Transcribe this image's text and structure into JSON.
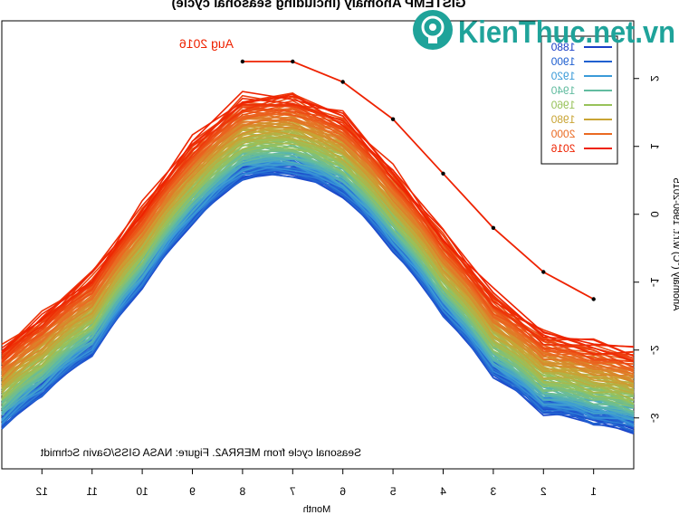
{
  "chart_data": {
    "type": "line",
    "title": "GISTEMP Anomaly (including seasonal cycle)",
    "xlabel": "Month",
    "ylabel": "Anomaly (°C) w.r.t. 1980-2015",
    "x_ticks": [
      1,
      2,
      3,
      4,
      5,
      6,
      7,
      8,
      9,
      10,
      11,
      12
    ],
    "y_ticks": [
      -3,
      -2,
      -1,
      0,
      1,
      2
    ],
    "xlim": [
      0.2,
      12.8
    ],
    "ylim": [
      -3.75,
      2.85
    ],
    "x_axis_reversed": true,
    "grid": false,
    "legend_position": "top-right",
    "annotation": "Aug 2016",
    "caption": "Seasonal cycle from MERRA2. Figure: NASA GISS/Gavin Schmidt",
    "legend": [
      {
        "label": "1880",
        "color": "#1a3fc7"
      },
      {
        "label": "1900",
        "color": "#2060d0"
      },
      {
        "label": "1920",
        "color": "#3a9ad8"
      },
      {
        "label": "1940",
        "color": "#62bca0"
      },
      {
        "label": "1960",
        "color": "#98c25a"
      },
      {
        "label": "1980",
        "color": "#c9a434"
      },
      {
        "label": "2000",
        "color": "#ea6a22"
      },
      {
        "label": "2016",
        "color": "#ee2200"
      }
    ],
    "base_cycle": [
      -2.6,
      -2.45,
      -1.9,
      -1.0,
      -0.05,
      0.75,
      1.05,
      1.0,
      0.35,
      -0.6,
      -1.6,
      -2.2
    ],
    "year_range": [
      1880,
      2015
    ],
    "warming_range": [
      -0.4,
      0.7
    ],
    "year_2016": {
      "name": "2016",
      "color": "#ee2200",
      "x": [
        1,
        2,
        3,
        4,
        5,
        6,
        7,
        8
      ],
      "values": [
        -1.25,
        -0.85,
        -0.2,
        0.6,
        1.4,
        1.95,
        2.25,
        2.25
      ]
    }
  },
  "watermark": {
    "text": "KienThuc.net.vn"
  }
}
